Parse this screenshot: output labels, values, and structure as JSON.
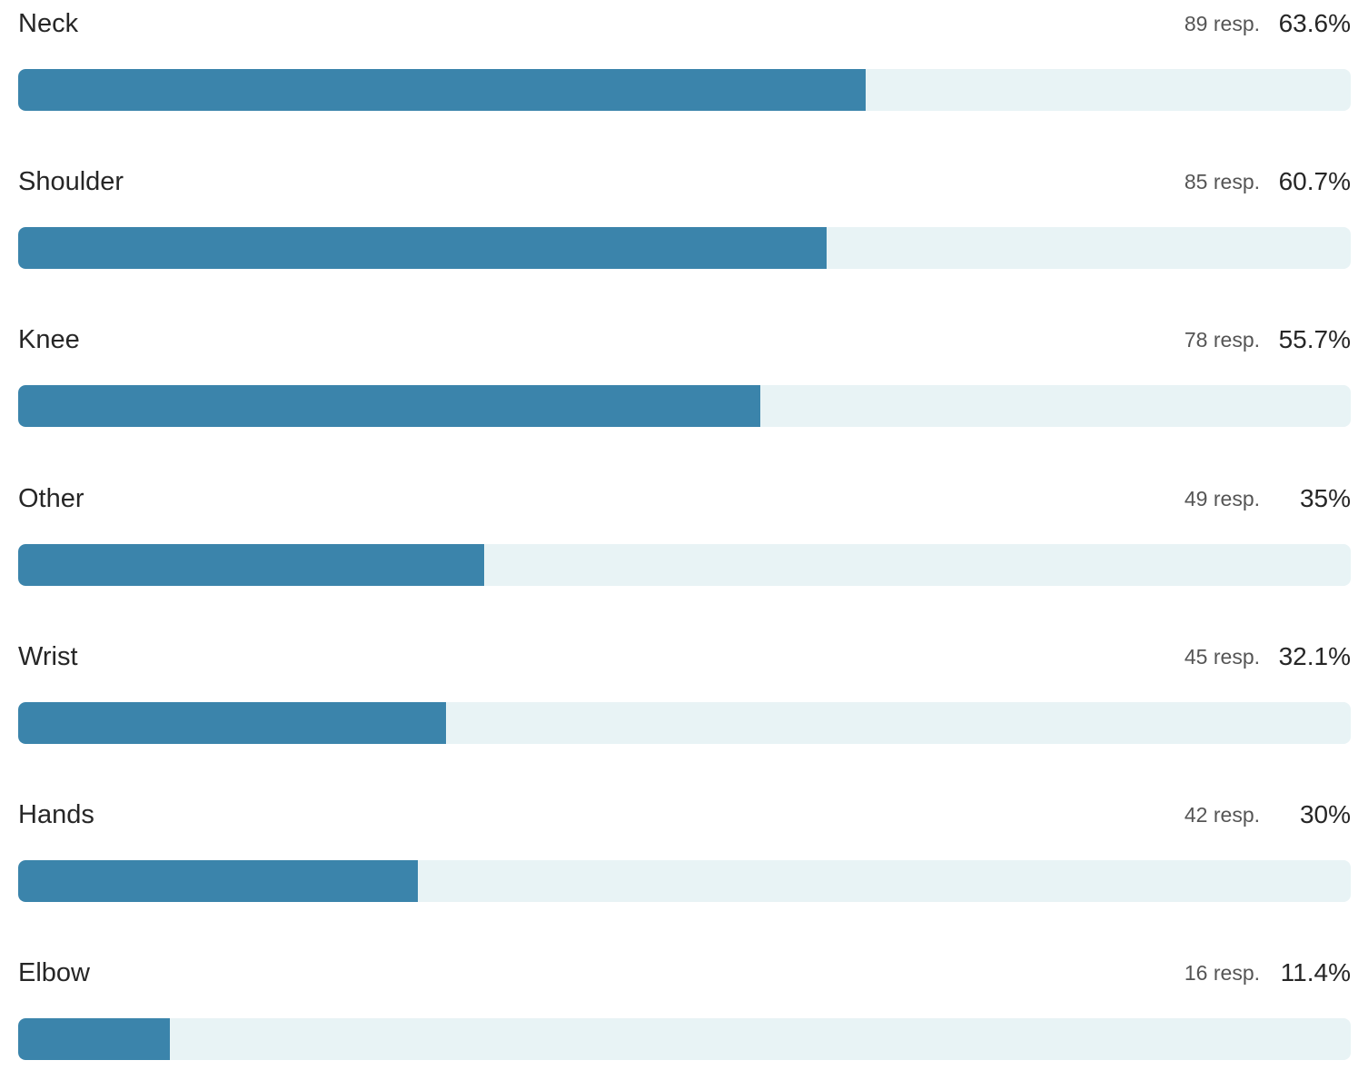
{
  "chart_data": {
    "type": "bar",
    "orientation": "horizontal",
    "categories": [
      "Neck",
      "Shoulder",
      "Knee",
      "Other",
      "Wrist",
      "Hands",
      "Elbow"
    ],
    "responses": [
      89,
      85,
      78,
      49,
      45,
      42,
      16
    ],
    "response_labels": [
      "89 resp.",
      "85 resp.",
      "78 resp.",
      "49 resp.",
      "45 resp.",
      "42 resp.",
      "16 resp."
    ],
    "values": [
      63.6,
      60.7,
      55.7,
      35,
      32.1,
      30,
      11.4
    ],
    "percent_labels": [
      "63.6%",
      "60.7%",
      "55.7%",
      "35%",
      "32.1%",
      "30%",
      "11.4%"
    ],
    "xlim": [
      0,
      100
    ],
    "grid": false,
    "colors": {
      "bar": "#3b84ab",
      "track": "#e8f3f5"
    }
  }
}
